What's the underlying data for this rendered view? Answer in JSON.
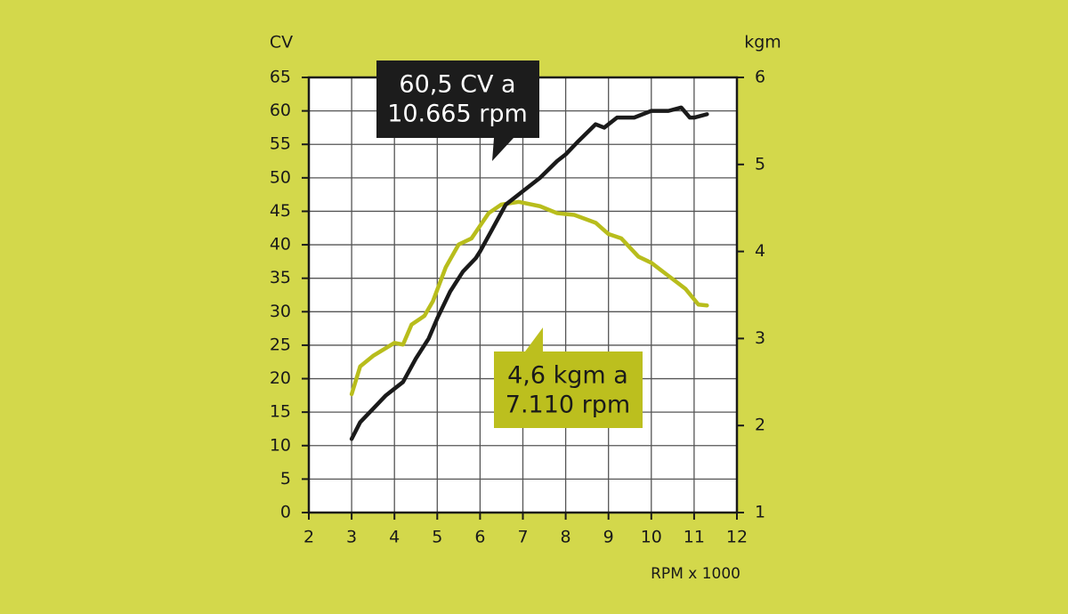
{
  "chart_data": {
    "type": "line",
    "y_label": "CV",
    "y2_label": "kgm",
    "x_label": "RPM x 1000",
    "xlim": [
      2,
      12
    ],
    "xticks": [
      2,
      3,
      4,
      5,
      6,
      7,
      8,
      9,
      10,
      11,
      12
    ],
    "ylim": [
      0,
      65
    ],
    "yticks": [
      0,
      5,
      10,
      15,
      20,
      25,
      30,
      35,
      40,
      45,
      50,
      55,
      60,
      65
    ],
    "y2lim": [
      1,
      6
    ],
    "y2ticks": [
      1,
      2,
      3,
      4,
      5,
      6
    ],
    "grid": true,
    "series": [
      {
        "name": "CV",
        "color": "#1a1a1a",
        "x": [
          3,
          3.2,
          3.5,
          3.8,
          4.0,
          4.2,
          4.5,
          4.8,
          5.0,
          5.3,
          5.6,
          5.9,
          6.0,
          6.3,
          6.6,
          7.0,
          7.4,
          7.8,
          8.0,
          8.3,
          8.7,
          8.9,
          9.2,
          9.6,
          10.0,
          10.4,
          10.7,
          10.9,
          11.0,
          11.3
        ],
        "values": [
          11,
          13.5,
          15.5,
          17.5,
          18.5,
          19.5,
          23,
          26,
          29,
          33,
          36,
          38,
          39,
          42.5,
          46,
          48,
          50,
          52.5,
          53.5,
          55.5,
          58,
          57.5,
          59,
          59,
          60,
          60,
          60.5,
          59,
          59,
          59.5
        ]
      },
      {
        "name": "kgm",
        "color": "#b8bd1c",
        "axis": "y2",
        "x": [
          3,
          3.2,
          3.5,
          4.0,
          4.2,
          4.4,
          4.7,
          4.9,
          5.2,
          5.5,
          5.8,
          6.2,
          6.5,
          6.9,
          7.4,
          7.8,
          8.2,
          8.7,
          9.0,
          9.3,
          9.7,
          10.0,
          10.4,
          10.8,
          11.1,
          11.3
        ],
        "values": [
          2.36,
          2.68,
          2.8,
          2.95,
          2.93,
          3.16,
          3.26,
          3.43,
          3.82,
          4.08,
          4.15,
          4.44,
          4.54,
          4.57,
          4.52,
          4.44,
          4.42,
          4.33,
          4.2,
          4.15,
          3.94,
          3.87,
          3.72,
          3.57,
          3.39,
          3.38
        ]
      }
    ],
    "annotations": [
      {
        "text": [
          "60,5 CV a",
          "10.665 rpm"
        ]
      },
      {
        "text": [
          "4,6 kgm a",
          "7.110 rpm"
        ]
      }
    ]
  }
}
